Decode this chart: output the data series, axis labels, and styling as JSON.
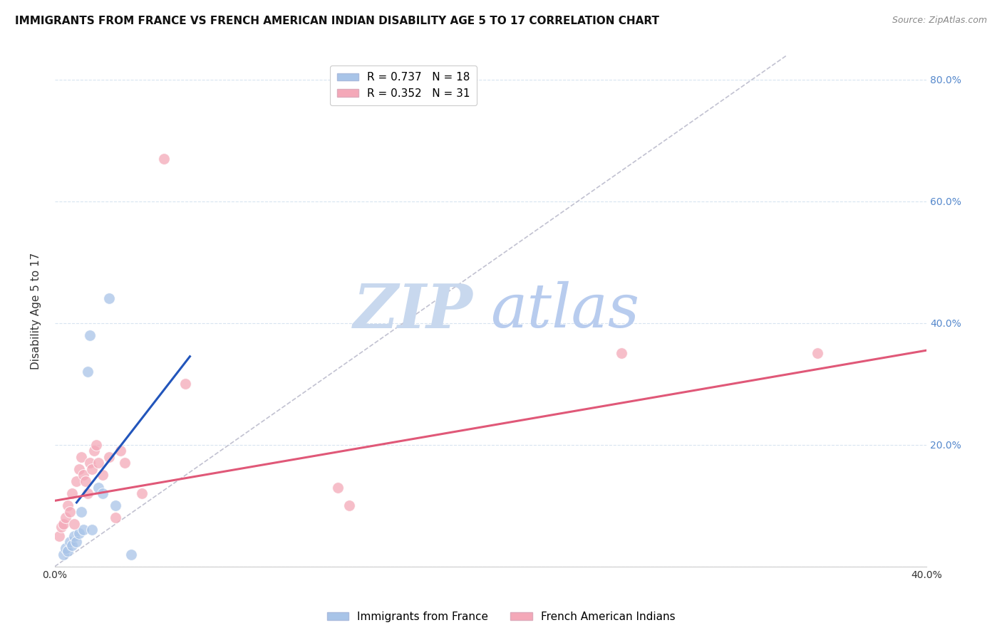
{
  "title": "IMMIGRANTS FROM FRANCE VS FRENCH AMERICAN INDIAN DISABILITY AGE 5 TO 17 CORRELATION CHART",
  "source": "Source: ZipAtlas.com",
  "ylabel": "Disability Age 5 to 17",
  "xlim": [
    0.0,
    0.4
  ],
  "ylim": [
    0.0,
    0.84
  ],
  "xticks": [
    0.0,
    0.05,
    0.1,
    0.15,
    0.2,
    0.25,
    0.3,
    0.35,
    0.4
  ],
  "yticks_left": [
    0.0,
    0.2,
    0.4,
    0.6,
    0.8
  ],
  "yticks_right": [
    0.2,
    0.4,
    0.6,
    0.8
  ],
  "ytick_labels_right": [
    "20.0%",
    "40.0%",
    "60.0%",
    "80.0%"
  ],
  "blue_scatter_x": [
    0.004,
    0.005,
    0.006,
    0.007,
    0.008,
    0.009,
    0.01,
    0.011,
    0.012,
    0.013,
    0.015,
    0.016,
    0.017,
    0.02,
    0.022,
    0.025,
    0.028,
    0.035
  ],
  "blue_scatter_y": [
    0.02,
    0.03,
    0.025,
    0.04,
    0.035,
    0.05,
    0.04,
    0.055,
    0.09,
    0.06,
    0.32,
    0.38,
    0.06,
    0.13,
    0.12,
    0.44,
    0.1,
    0.02
  ],
  "pink_scatter_x": [
    0.002,
    0.003,
    0.004,
    0.005,
    0.006,
    0.007,
    0.008,
    0.009,
    0.01,
    0.011,
    0.012,
    0.013,
    0.014,
    0.015,
    0.016,
    0.017,
    0.018,
    0.019,
    0.02,
    0.022,
    0.025,
    0.028,
    0.03,
    0.032,
    0.04,
    0.05,
    0.06,
    0.13,
    0.135,
    0.26,
    0.35
  ],
  "pink_scatter_y": [
    0.05,
    0.065,
    0.07,
    0.08,
    0.1,
    0.09,
    0.12,
    0.07,
    0.14,
    0.16,
    0.18,
    0.15,
    0.14,
    0.12,
    0.17,
    0.16,
    0.19,
    0.2,
    0.17,
    0.15,
    0.18,
    0.08,
    0.19,
    0.17,
    0.12,
    0.67,
    0.3,
    0.13,
    0.1,
    0.35,
    0.35
  ],
  "blue_line_x": [
    0.01,
    0.062
  ],
  "blue_line_y": [
    0.105,
    0.345
  ],
  "pink_line_x": [
    0.0,
    0.4
  ],
  "pink_line_y": [
    0.108,
    0.355
  ],
  "diag_line_x": [
    0.0,
    0.336
  ],
  "diag_line_y": [
    0.0,
    0.84
  ],
  "legend_r_blue": "R = 0.737",
  "legend_n_blue": "N = 18",
  "legend_r_pink": "R = 0.352",
  "legend_n_pink": "N = 31",
  "blue_color": "#A8C4E8",
  "pink_color": "#F4A8B8",
  "blue_line_color": "#2255BB",
  "pink_line_color": "#E05878",
  "watermark_zip": "ZIP",
  "watermark_atlas": "atlas",
  "watermark_zip_color": "#C8D8EE",
  "watermark_atlas_color": "#B8CCEE",
  "bg_color": "#FFFFFF",
  "grid_color": "#D8E4F0",
  "title_fontsize": 11,
  "label_fontsize": 11,
  "tick_fontsize": 10,
  "right_tick_color": "#5588CC"
}
